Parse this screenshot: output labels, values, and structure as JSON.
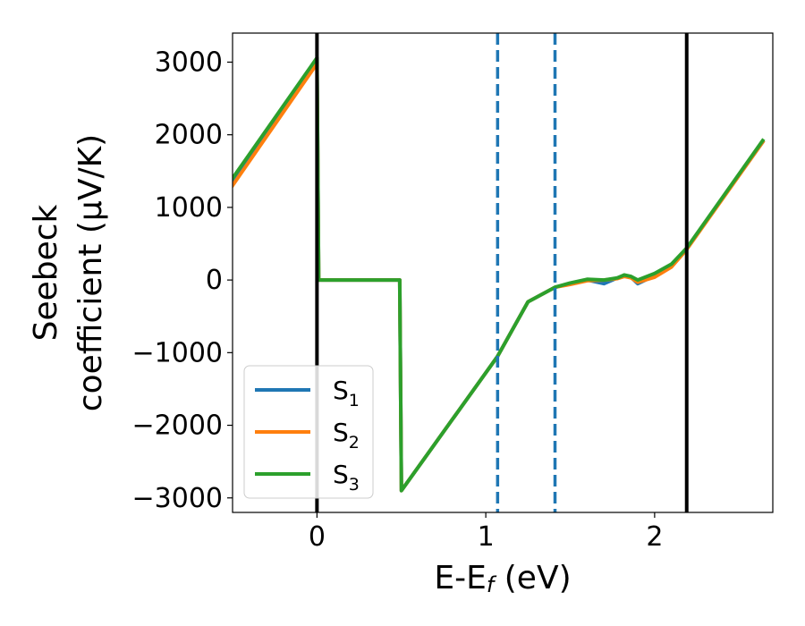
{
  "chart_data": {
    "type": "line",
    "title": "",
    "xlabel": {
      "main": "E-E",
      "sub": "f",
      "unit": " (eV)"
    },
    "ylabel": {
      "line1": "Seebeck",
      "line2": "coefficient  (μV/K)"
    },
    "xlim": [
      -0.5,
      2.7
    ],
    "ylim": [
      -3200,
      3400
    ],
    "xticks": [
      0,
      1,
      2
    ],
    "xtick_labels": [
      "0",
      "1",
      "2"
    ],
    "yticks": [
      -3000,
      -2000,
      -1000,
      0,
      1000,
      2000,
      3000
    ],
    "ytick_labels": [
      "−3000",
      "−2000",
      "−1000",
      "0",
      "1000",
      "2000",
      "3000"
    ],
    "grid": false,
    "legend_position": "lower-left",
    "vertical_lines": [
      {
        "x": 0,
        "style": "solid",
        "color": "#000000"
      },
      {
        "x": 1.07,
        "style": "dashed",
        "color": "#1f77b4"
      },
      {
        "x": 1.41,
        "style": "dashed",
        "color": "#1f77b4"
      },
      {
        "x": 2.19,
        "style": "solid",
        "color": "#000000"
      }
    ],
    "series": [
      {
        "name": "S",
        "sub": "1",
        "color": "#1f77b4",
        "x": [
          -0.5,
          0,
          0.01,
          0.49,
          0.5,
          1.07,
          1.25,
          1.41,
          1.5,
          1.6,
          1.7,
          1.78,
          1.82,
          1.86,
          1.9,
          2.0,
          2.1,
          2.19,
          2.64
        ],
        "y": [
          1350,
          3020,
          0,
          0,
          -2900,
          -1050,
          -300,
          -100,
          -50,
          0,
          -50,
          30,
          60,
          40,
          -50,
          60,
          200,
          430,
          1900
        ]
      },
      {
        "name": "S",
        "sub": "2",
        "color": "#ff7f0e",
        "x": [
          -0.5,
          0,
          0.01,
          0.49,
          0.5,
          1.07,
          1.25,
          1.41,
          1.5,
          1.6,
          1.7,
          1.78,
          1.82,
          1.86,
          1.9,
          2.0,
          2.1,
          2.19,
          2.64
        ],
        "y": [
          1300,
          2980,
          0,
          0,
          -2900,
          -1050,
          -300,
          -100,
          -60,
          -10,
          0,
          20,
          50,
          30,
          -30,
          40,
          180,
          420,
          1900
        ]
      },
      {
        "name": "S",
        "sub": "3",
        "color": "#2ca02c",
        "x": [
          -0.5,
          0,
          0.01,
          0.49,
          0.5,
          1.07,
          1.25,
          1.41,
          1.5,
          1.6,
          1.7,
          1.78,
          1.82,
          1.86,
          1.9,
          2.0,
          2.1,
          2.19,
          2.64
        ],
        "y": [
          1400,
          3060,
          0,
          0,
          -2900,
          -1050,
          -300,
          -100,
          -40,
          10,
          0,
          30,
          70,
          50,
          0,
          90,
          220,
          440,
          1920
        ]
      }
    ]
  }
}
